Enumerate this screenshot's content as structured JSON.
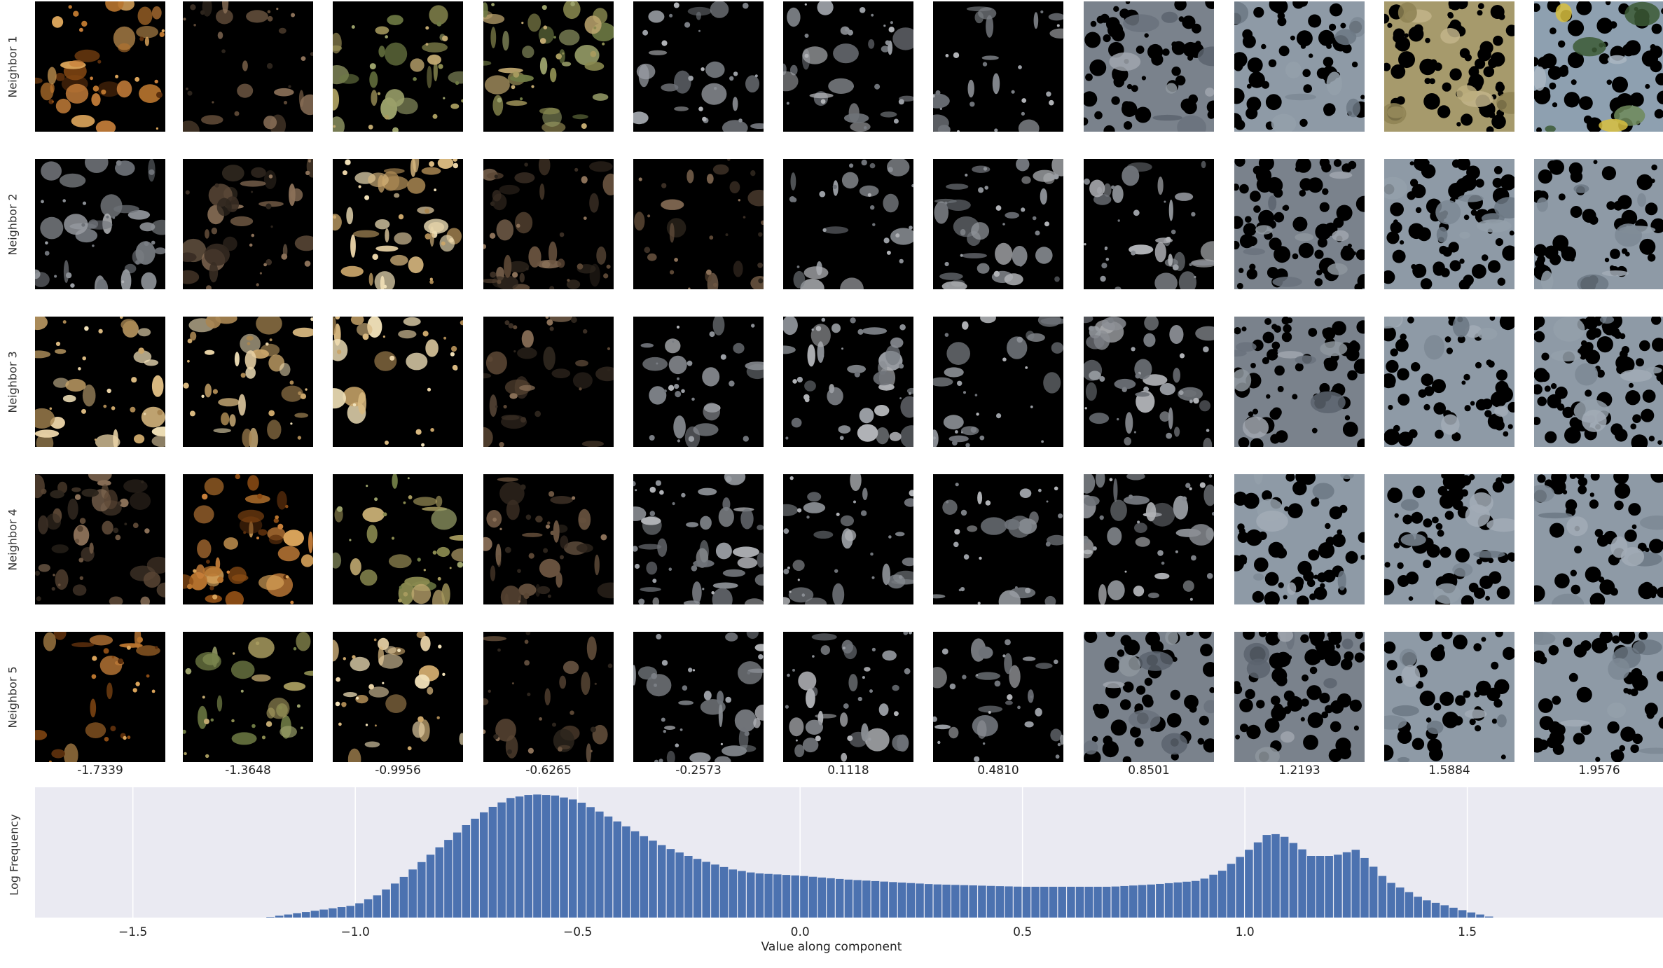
{
  "row_labels": [
    "Neighbor 1",
    "Neighbor 2",
    "Neighbor 3",
    "Neighbor 4",
    "Neighbor 5"
  ],
  "column_values": [
    "-1.7339",
    "-1.3648",
    "-0.9956",
    "-0.6265",
    "-0.2573",
    "0.1118",
    "0.4810",
    "0.8501",
    "1.2193",
    "1.5884",
    "1.9576"
  ],
  "tile_themes": [
    [
      "brown",
      "dark",
      "olive",
      "olive",
      "grey",
      "grey",
      "grey",
      "photo-water",
      "photo-grey",
      "photo-field",
      "photo-sky"
    ],
    [
      "grey",
      "dark",
      "tan",
      "dark",
      "dark",
      "grey",
      "grey",
      "grey",
      "photo-water",
      "photo-grey",
      "photo-grey"
    ],
    [
      "tan",
      "tan",
      "tan",
      "dark",
      "grey",
      "grey",
      "grey",
      "grey",
      "photo-water",
      "photo-grey",
      "photo-grey"
    ],
    [
      "dark",
      "brown",
      "olive",
      "dark",
      "grey",
      "grey",
      "grey",
      "grey",
      "photo-grey",
      "photo-grey",
      "photo-grey"
    ],
    [
      "brown",
      "olive",
      "tan",
      "dark",
      "grey",
      "grey",
      "grey",
      "photo-water",
      "photo-water",
      "photo-grey",
      "photo-grey"
    ]
  ],
  "chart_data": {
    "type": "bar",
    "xlabel": "Value along component",
    "ylabel": "Log Frequency",
    "xlim": [
      -1.72,
      1.94
    ],
    "xticks": [
      -1.5,
      -1.0,
      -0.5,
      0.0,
      0.5,
      1.0,
      1.5
    ],
    "xtick_labels": [
      "−1.5",
      "−1.0",
      "−0.5",
      "0.0",
      "0.5",
      "1.0",
      "1.5"
    ],
    "grid": true,
    "bar_color": "#4c72b0",
    "background": "#eaeaf2",
    "bin_width": 0.02,
    "x": [
      -1.2,
      -1.1,
      -1.0,
      -0.95,
      -0.9,
      -0.85,
      -0.8,
      -0.75,
      -0.7,
      -0.65,
      -0.6,
      -0.55,
      -0.5,
      -0.45,
      -0.4,
      -0.35,
      -0.3,
      -0.25,
      -0.2,
      -0.15,
      -0.1,
      -0.05,
      0.0,
      0.1,
      0.2,
      0.3,
      0.4,
      0.5,
      0.6,
      0.7,
      0.8,
      0.9,
      0.95,
      1.0,
      1.05,
      1.08,
      1.12,
      1.15,
      1.2,
      1.25,
      1.28,
      1.32,
      1.4,
      1.5,
      1.56
    ],
    "y": [
      0.0,
      0.05,
      0.1,
      0.18,
      0.3,
      0.45,
      0.6,
      0.75,
      0.88,
      0.97,
      1.0,
      0.99,
      0.95,
      0.86,
      0.76,
      0.66,
      0.57,
      0.5,
      0.44,
      0.39,
      0.36,
      0.35,
      0.34,
      0.31,
      0.29,
      0.27,
      0.26,
      0.25,
      0.25,
      0.25,
      0.27,
      0.3,
      0.38,
      0.52,
      0.67,
      0.68,
      0.58,
      0.5,
      0.5,
      0.55,
      0.45,
      0.3,
      0.15,
      0.05,
      0.0
    ]
  }
}
